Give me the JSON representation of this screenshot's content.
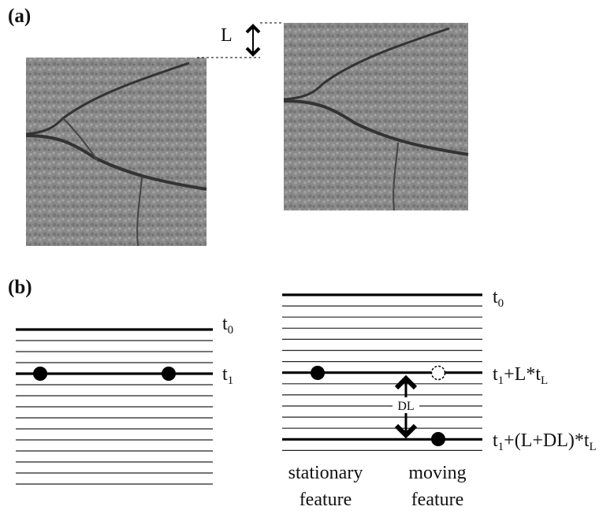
{
  "panel_a": {
    "label": "(a)",
    "offset_label": "L"
  },
  "panel_b": {
    "label": "(b)",
    "left_labels": [
      [
        {
          "text": "t"
        },
        {
          "sub": "0"
        }
      ],
      [
        {
          "text": "t"
        },
        {
          "sub": "1"
        }
      ]
    ],
    "right_labels": [
      [
        {
          "text": "t"
        },
        {
          "sub": "0"
        }
      ],
      [
        {
          "text": "t"
        },
        {
          "sub": "1"
        },
        {
          "text": "+L*t"
        },
        {
          "sub": "L"
        }
      ],
      [
        {
          "text": "t"
        },
        {
          "sub": "1"
        },
        {
          "text": "+(L+DL)*t"
        },
        {
          "sub": "L"
        }
      ]
    ],
    "shift_label": "DL",
    "stationary_caption": [
      "stationary",
      "feature"
    ],
    "moving_caption": [
      "moving",
      "feature"
    ]
  }
}
